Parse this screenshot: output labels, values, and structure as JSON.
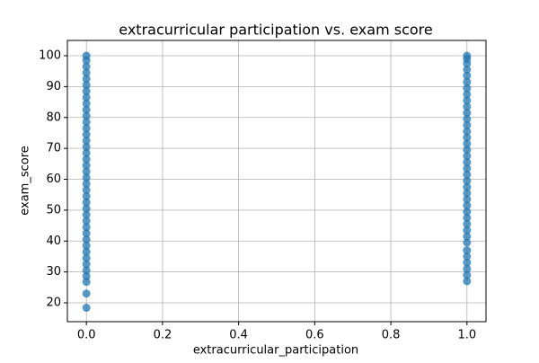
{
  "chart_data": {
    "type": "scatter",
    "title": "extracurricular participation vs. exam score",
    "xlabel": "extracurricular_participation",
    "ylabel": "exam_score",
    "x": [
      0,
      0,
      0,
      0,
      0,
      0,
      0,
      0,
      0,
      0,
      0,
      0,
      0,
      0,
      0,
      0,
      0,
      0,
      0,
      0,
      0,
      0,
      0,
      0,
      0,
      0,
      0,
      0,
      0,
      0,
      0,
      0,
      0,
      0,
      0,
      0,
      0,
      0,
      0,
      0,
      1,
      1,
      1,
      1,
      1,
      1,
      1,
      1,
      1,
      1,
      1,
      1,
      1,
      1,
      1,
      1,
      1,
      1,
      1,
      1,
      1,
      1,
      1,
      1,
      1,
      1,
      1,
      1,
      1,
      1,
      1,
      1,
      1,
      1,
      1,
      1,
      1,
      1
    ],
    "y": [
      18.4,
      23,
      26.8,
      28.6,
      30.5,
      32.5,
      34.5,
      36.5,
      38.5,
      40.5,
      42.5,
      44.5,
      46.5,
      48.5,
      50.5,
      52.5,
      54.5,
      56.5,
      58.5,
      60.5,
      62.5,
      64.5,
      66.5,
      68.5,
      70.5,
      72.5,
      74.5,
      76.5,
      78.5,
      80.5,
      82.5,
      84.5,
      86.5,
      88.5,
      90.5,
      92.5,
      94.5,
      96.5,
      98.5,
      100,
      27,
      29,
      31,
      33,
      35,
      37,
      39.5,
      41.5,
      43.5,
      45.5,
      47.5,
      49.5,
      51.5,
      53.5,
      55.5,
      57.5,
      59.5,
      61.5,
      63.5,
      65.5,
      67.5,
      69.5,
      71.5,
      73.5,
      75.5,
      77.5,
      79.5,
      81.5,
      83.5,
      85.5,
      87.5,
      89.5,
      91.5,
      93.5,
      95.5,
      97.5,
      99,
      100
    ],
    "color": "#1f77b4",
    "grid": true,
    "xlim": [
      -0.05,
      1.05
    ],
    "xticks": [
      {
        "value": 0,
        "label": "0.0"
      },
      {
        "value": 0.2,
        "label": "0.2"
      },
      {
        "value": 0.4,
        "label": "0.4"
      },
      {
        "value": 0.6,
        "label": "0.6"
      },
      {
        "value": 0.8,
        "label": "0.8"
      },
      {
        "value": 1,
        "label": "1.0"
      }
    ],
    "ylim": [
      13.9,
      104.95
    ],
    "yticks": [
      20,
      30,
      40,
      50,
      60,
      70,
      80,
      90,
      100
    ]
  }
}
